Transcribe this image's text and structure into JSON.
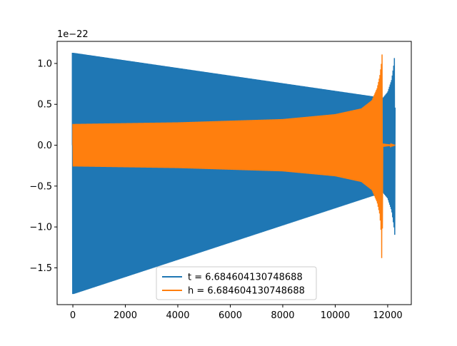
{
  "chart_data": {
    "type": "line",
    "title": "",
    "xlabel": "",
    "ylabel": "",
    "offset_text": "1e−22",
    "xlim": [
      -600,
      12900
    ],
    "ylim": [
      -1.95,
      1.27
    ],
    "x_ticks": [
      0,
      2000,
      4000,
      6000,
      8000,
      10000,
      12000
    ],
    "x_tick_labels": [
      "0",
      "2000",
      "4000",
      "6000",
      "8000",
      "10000",
      "12000"
    ],
    "y_ticks": [
      1.0,
      0.5,
      0.0,
      -0.5,
      -1.0,
      -1.5
    ],
    "y_tick_labels": [
      "1.0",
      "0.5",
      "0.0",
      "−0.5",
      "−1.0",
      "−1.5"
    ],
    "grid": false,
    "legend_position": "lower-center",
    "series": [
      {
        "name": "t = 6.684604130748688",
        "color": "#1f77b4",
        "kind": "oscillating-envelope",
        "envelope_points": [
          {
            "x": -20,
            "upper": 1.13,
            "lower": -1.82
          },
          {
            "x": 30,
            "upper": 1.13,
            "lower": -1.82
          },
          {
            "x": 11820,
            "upper": 0.58,
            "lower": -0.58
          },
          {
            "x": 12000,
            "upper": 0.65,
            "lower": -0.65
          },
          {
            "x": 12150,
            "upper": 0.8,
            "lower": -0.8
          },
          {
            "x": 12240,
            "upper": 1.0,
            "lower": -1.0
          },
          {
            "x": 12270,
            "upper": 1.13,
            "lower": -1.1
          },
          {
            "x": 12290,
            "upper": 0.05,
            "lower": -0.05
          }
        ]
      },
      {
        "name": "h = 6.684604130748688",
        "color": "#ff7f0e",
        "kind": "oscillating-envelope",
        "envelope_points": [
          {
            "x": 0,
            "upper": 0.26,
            "lower": -0.26
          },
          {
            "x": 2000,
            "upper": 0.27,
            "lower": -0.27
          },
          {
            "x": 4000,
            "upper": 0.28,
            "lower": -0.28
          },
          {
            "x": 6000,
            "upper": 0.3,
            "lower": -0.3
          },
          {
            "x": 8000,
            "upper": 0.32,
            "lower": -0.32
          },
          {
            "x": 10000,
            "upper": 0.38,
            "lower": -0.38
          },
          {
            "x": 11000,
            "upper": 0.45,
            "lower": -0.45
          },
          {
            "x": 11400,
            "upper": 0.55,
            "lower": -0.55
          },
          {
            "x": 11600,
            "upper": 0.7,
            "lower": -0.7
          },
          {
            "x": 11700,
            "upper": 0.85,
            "lower": -0.85
          },
          {
            "x": 11760,
            "upper": 1.0,
            "lower": -1.1
          },
          {
            "x": 11790,
            "upper": 1.13,
            "lower": -1.82
          },
          {
            "x": 11810,
            "upper": 0.02,
            "lower": -0.02
          },
          {
            "x": 12300,
            "upper": 0.0,
            "lower": 0.0
          }
        ]
      }
    ]
  }
}
